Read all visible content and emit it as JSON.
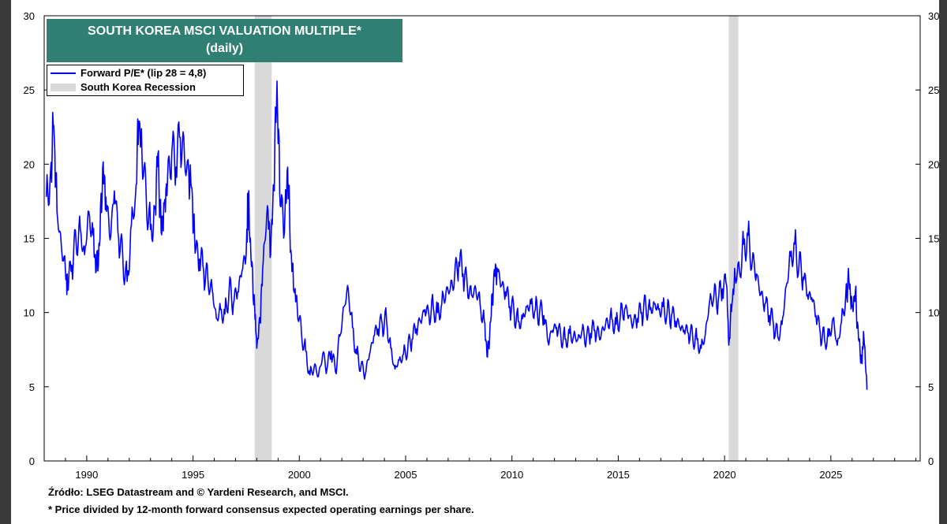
{
  "chart_data": {
    "type": "line",
    "title": "SOUTH KOREA MSCI VALUATION MULTIPLE*",
    "subtitle": "(daily)",
    "xlim": [
      1988.0,
      2029.2
    ],
    "ylim": [
      0,
      30
    ],
    "x_ticks": [
      1990,
      1995,
      2000,
      2005,
      2010,
      2015,
      2020,
      2025
    ],
    "y_ticks": [
      0,
      5,
      10,
      15,
      20,
      25,
      30
    ],
    "grid": false,
    "legend_position": "top-left",
    "colors": {
      "series": "#0000ff",
      "recession": "#d9d9d9",
      "title_bg": "#2f7f73"
    },
    "series": [
      {
        "name": "Forward P/E* (lip 28 = 4,8)",
        "points": [
          [
            1988.1,
            17.8
          ],
          [
            1988.3,
            19.6
          ],
          [
            1988.45,
            22.6
          ],
          [
            1988.6,
            16.8
          ],
          [
            1988.8,
            14.6
          ],
          [
            1989.0,
            12.8
          ],
          [
            1989.1,
            11.5
          ],
          [
            1989.3,
            13.2
          ],
          [
            1989.5,
            14.8
          ],
          [
            1989.7,
            15.6
          ],
          [
            1989.9,
            13.9
          ],
          [
            1990.1,
            16.8
          ],
          [
            1990.3,
            15.2
          ],
          [
            1990.45,
            12.8
          ],
          [
            1990.6,
            14.5
          ],
          [
            1990.75,
            19.8
          ],
          [
            1990.9,
            17.8
          ],
          [
            1991.1,
            14.9
          ],
          [
            1991.3,
            18.2
          ],
          [
            1991.5,
            15.0
          ],
          [
            1991.7,
            13.6
          ],
          [
            1991.9,
            12.1
          ],
          [
            1992.1,
            15.9
          ],
          [
            1992.3,
            18.0
          ],
          [
            1992.45,
            22.9
          ],
          [
            1992.6,
            20.6
          ],
          [
            1992.8,
            17.8
          ],
          [
            1993.0,
            15.6
          ],
          [
            1993.2,
            17.0
          ],
          [
            1993.35,
            20.7
          ],
          [
            1993.5,
            15.4
          ],
          [
            1993.65,
            17.4
          ],
          [
            1993.8,
            19.0
          ],
          [
            1994.0,
            20.8
          ],
          [
            1994.2,
            19.8
          ],
          [
            1994.4,
            21.8
          ],
          [
            1994.6,
            20.4
          ],
          [
            1994.8,
            19.6
          ],
          [
            1994.95,
            18.4
          ],
          [
            1995.1,
            14.0
          ],
          [
            1995.3,
            13.6
          ],
          [
            1995.5,
            12.8
          ],
          [
            1995.7,
            12.2
          ],
          [
            1995.9,
            11.6
          ],
          [
            1996.1,
            9.6
          ],
          [
            1996.3,
            10.2
          ],
          [
            1996.5,
            9.9
          ],
          [
            1996.7,
            11.6
          ],
          [
            1996.9,
            10.6
          ],
          [
            1997.1,
            11.4
          ],
          [
            1997.3,
            12.8
          ],
          [
            1997.5,
            13.9
          ],
          [
            1997.6,
            17.8
          ],
          [
            1997.75,
            13.1
          ],
          [
            1997.9,
            10.4
          ],
          [
            1998.0,
            7.6
          ],
          [
            1998.15,
            9.4
          ],
          [
            1998.3,
            13.4
          ],
          [
            1998.5,
            17.2
          ],
          [
            1998.65,
            13.9
          ],
          [
            1998.8,
            18.6
          ],
          [
            1998.95,
            25.6
          ],
          [
            1999.1,
            17.2
          ],
          [
            1999.3,
            15.4
          ],
          [
            1999.45,
            19.8
          ],
          [
            1999.6,
            14.2
          ],
          [
            1999.75,
            11.4
          ],
          [
            1999.9,
            10.4
          ],
          [
            2000.1,
            8.6
          ],
          [
            2000.3,
            7.4
          ],
          [
            2000.5,
            5.8
          ],
          [
            2000.7,
            6.4
          ],
          [
            2000.9,
            5.7
          ],
          [
            2001.1,
            7.2
          ],
          [
            2001.3,
            6.2
          ],
          [
            2001.5,
            7.4
          ],
          [
            2001.7,
            6.0
          ],
          [
            2001.9,
            8.4
          ],
          [
            2002.1,
            10.4
          ],
          [
            2002.3,
            11.6
          ],
          [
            2002.5,
            9.0
          ],
          [
            2002.7,
            7.2
          ],
          [
            2002.9,
            6.4
          ],
          [
            2003.1,
            5.8
          ],
          [
            2003.3,
            7.2
          ],
          [
            2003.5,
            8.4
          ],
          [
            2003.7,
            8.9
          ],
          [
            2003.9,
            9.2
          ],
          [
            2004.1,
            9.5
          ],
          [
            2004.3,
            7.6
          ],
          [
            2004.5,
            6.2
          ],
          [
            2004.7,
            6.8
          ],
          [
            2004.9,
            7.2
          ],
          [
            2005.1,
            7.6
          ],
          [
            2005.3,
            8.2
          ],
          [
            2005.5,
            8.9
          ],
          [
            2005.7,
            9.4
          ],
          [
            2005.9,
            10.2
          ],
          [
            2006.1,
            9.8
          ],
          [
            2006.3,
            10.4
          ],
          [
            2006.5,
            10.0
          ],
          [
            2006.7,
            10.6
          ],
          [
            2006.9,
            11.4
          ],
          [
            2007.1,
            11.6
          ],
          [
            2007.3,
            12.4
          ],
          [
            2007.5,
            13.4
          ],
          [
            2007.7,
            12.6
          ],
          [
            2007.9,
            11.8
          ],
          [
            2008.1,
            11.2
          ],
          [
            2008.3,
            11.6
          ],
          [
            2008.5,
            10.6
          ],
          [
            2008.7,
            9.4
          ],
          [
            2008.85,
            7.0
          ],
          [
            2009.0,
            9.4
          ],
          [
            2009.15,
            12.6
          ],
          [
            2009.3,
            13.0
          ],
          [
            2009.5,
            11.8
          ],
          [
            2009.7,
            11.4
          ],
          [
            2009.9,
            10.4
          ],
          [
            2010.1,
            10.0
          ],
          [
            2010.3,
            9.4
          ],
          [
            2010.5,
            9.6
          ],
          [
            2010.7,
            10.4
          ],
          [
            2010.9,
            10.6
          ],
          [
            2011.1,
            10.2
          ],
          [
            2011.3,
            10.0
          ],
          [
            2011.5,
            9.8
          ],
          [
            2011.7,
            8.0
          ],
          [
            2011.9,
            8.8
          ],
          [
            2012.1,
            9.0
          ],
          [
            2012.3,
            8.4
          ],
          [
            2012.5,
            8.2
          ],
          [
            2012.7,
            8.6
          ],
          [
            2012.9,
            8.4
          ],
          [
            2013.1,
            8.2
          ],
          [
            2013.3,
            8.8
          ],
          [
            2013.5,
            8.2
          ],
          [
            2013.7,
            8.6
          ],
          [
            2013.9,
            8.8
          ],
          [
            2014.1,
            8.4
          ],
          [
            2014.3,
            8.9
          ],
          [
            2014.5,
            9.4
          ],
          [
            2014.7,
            9.6
          ],
          [
            2014.9,
            9.2
          ],
          [
            2015.1,
            9.8
          ],
          [
            2015.3,
            10.2
          ],
          [
            2015.5,
            9.8
          ],
          [
            2015.7,
            9.2
          ],
          [
            2015.9,
            9.6
          ],
          [
            2016.1,
            10.0
          ],
          [
            2016.3,
            10.4
          ],
          [
            2016.5,
            10.2
          ],
          [
            2016.7,
            10.6
          ],
          [
            2016.9,
            10.2
          ],
          [
            2017.1,
            10.4
          ],
          [
            2017.3,
            10.0
          ],
          [
            2017.5,
            9.8
          ],
          [
            2017.7,
            9.4
          ],
          [
            2017.9,
            9.0
          ],
          [
            2018.1,
            8.8
          ],
          [
            2018.3,
            8.6
          ],
          [
            2018.5,
            8.4
          ],
          [
            2018.7,
            8.2
          ],
          [
            2018.9,
            7.6
          ],
          [
            2019.1,
            8.6
          ],
          [
            2019.3,
            10.8
          ],
          [
            2019.5,
            11.2
          ],
          [
            2019.7,
            10.8
          ],
          [
            2019.9,
            11.6
          ],
          [
            2020.1,
            11.8
          ],
          [
            2020.2,
            7.8
          ],
          [
            2020.35,
            10.6
          ],
          [
            2020.5,
            12.4
          ],
          [
            2020.7,
            12.8
          ],
          [
            2020.9,
            14.6
          ],
          [
            2021.1,
            15.2
          ],
          [
            2021.3,
            13.4
          ],
          [
            2021.5,
            12.6
          ],
          [
            2021.7,
            11.2
          ],
          [
            2021.9,
            10.6
          ],
          [
            2022.1,
            9.8
          ],
          [
            2022.3,
            9.2
          ],
          [
            2022.5,
            8.4
          ],
          [
            2022.7,
            9.2
          ],
          [
            2022.9,
            11.8
          ],
          [
            2023.1,
            13.8
          ],
          [
            2023.3,
            14.6
          ],
          [
            2023.5,
            13.2
          ],
          [
            2023.7,
            12.4
          ],
          [
            2023.9,
            11.2
          ],
          [
            2024.1,
            11.0
          ],
          [
            2024.3,
            9.8
          ],
          [
            2024.5,
            8.6
          ],
          [
            2024.7,
            8.2
          ],
          [
            2024.9,
            8.4
          ],
          [
            2025.1,
            9.6
          ],
          [
            2025.3,
            7.8
          ],
          [
            2025.5,
            9.4
          ],
          [
            2025.7,
            11.2
          ],
          [
            2025.85,
            12.2
          ],
          [
            2026.0,
            10.4
          ],
          [
            2026.15,
            11.4
          ],
          [
            2026.3,
            8.2
          ],
          [
            2026.45,
            6.8
          ],
          [
            2026.55,
            8.4
          ],
          [
            2026.7,
            4.8
          ]
        ]
      }
    ],
    "recession_bands": [
      [
        1997.9,
        1998.7
      ],
      [
        2020.2,
        2020.65
      ]
    ],
    "legend_recession": "South Korea Recession"
  },
  "notes": {
    "source": "Źródło: LSEG Datastream and © Yardeni Research, and MSCI.",
    "footnote": "* Price divided by 12-month forward consensus expected operating earnings per share."
  }
}
